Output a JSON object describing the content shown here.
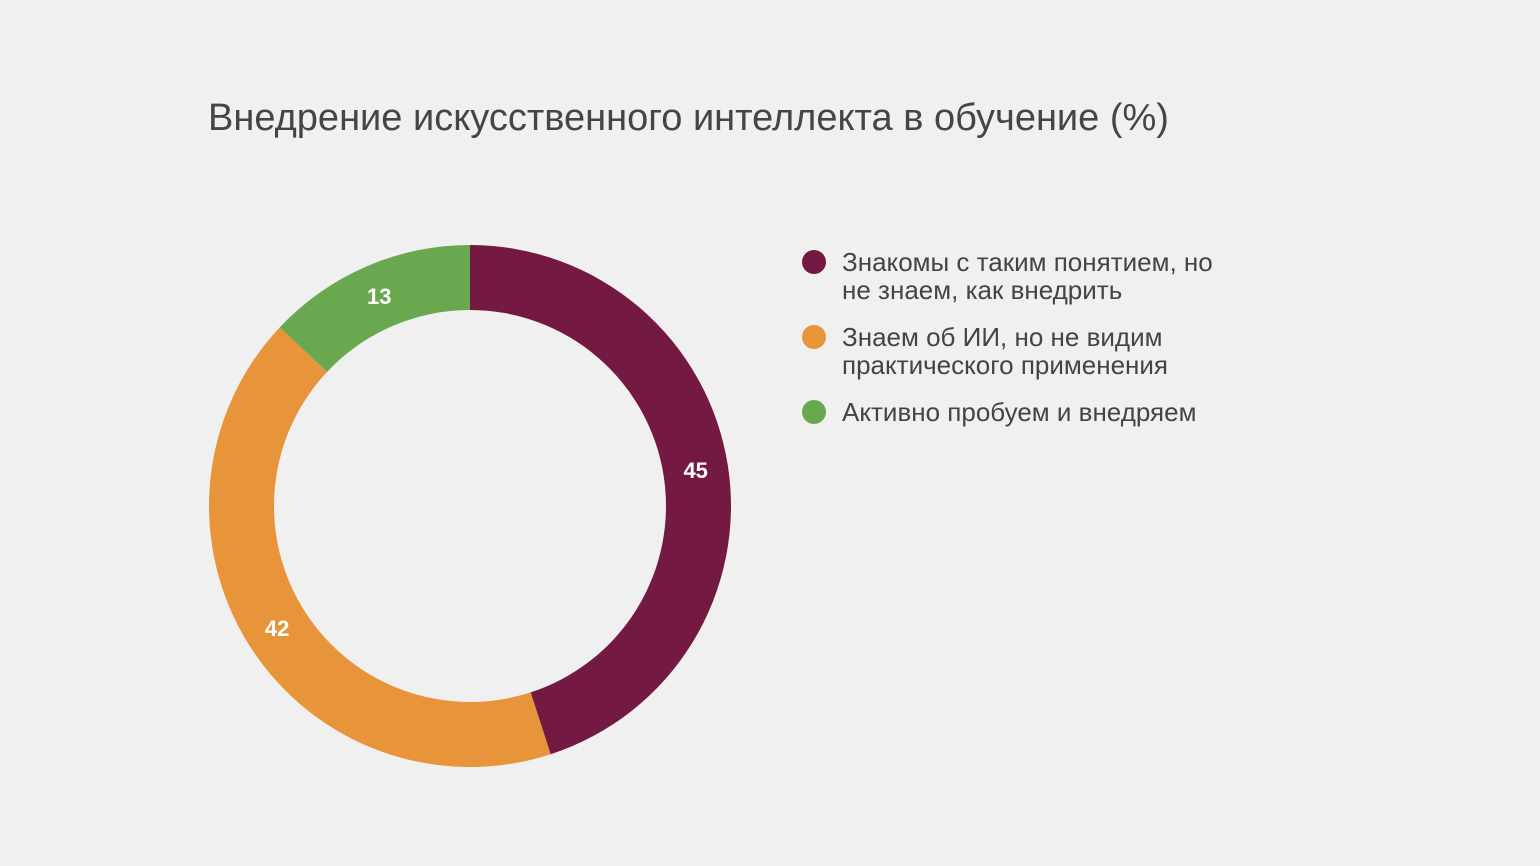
{
  "chart_data": {
    "type": "pie",
    "title": "Внедрение искусственного интеллекта в обучение (%)",
    "categories": [
      "Знакомы с таким понятием, но не знаем, как внедрить",
      "Знаем об ИИ, но не видим практического применения",
      "Активно пробуем и внедряем"
    ],
    "values": [
      45,
      42,
      13
    ],
    "colors": [
      "#731942",
      "#E8943A",
      "#6AA84F"
    ],
    "legend_position": "right",
    "donut": true,
    "data_labels": true
  }
}
